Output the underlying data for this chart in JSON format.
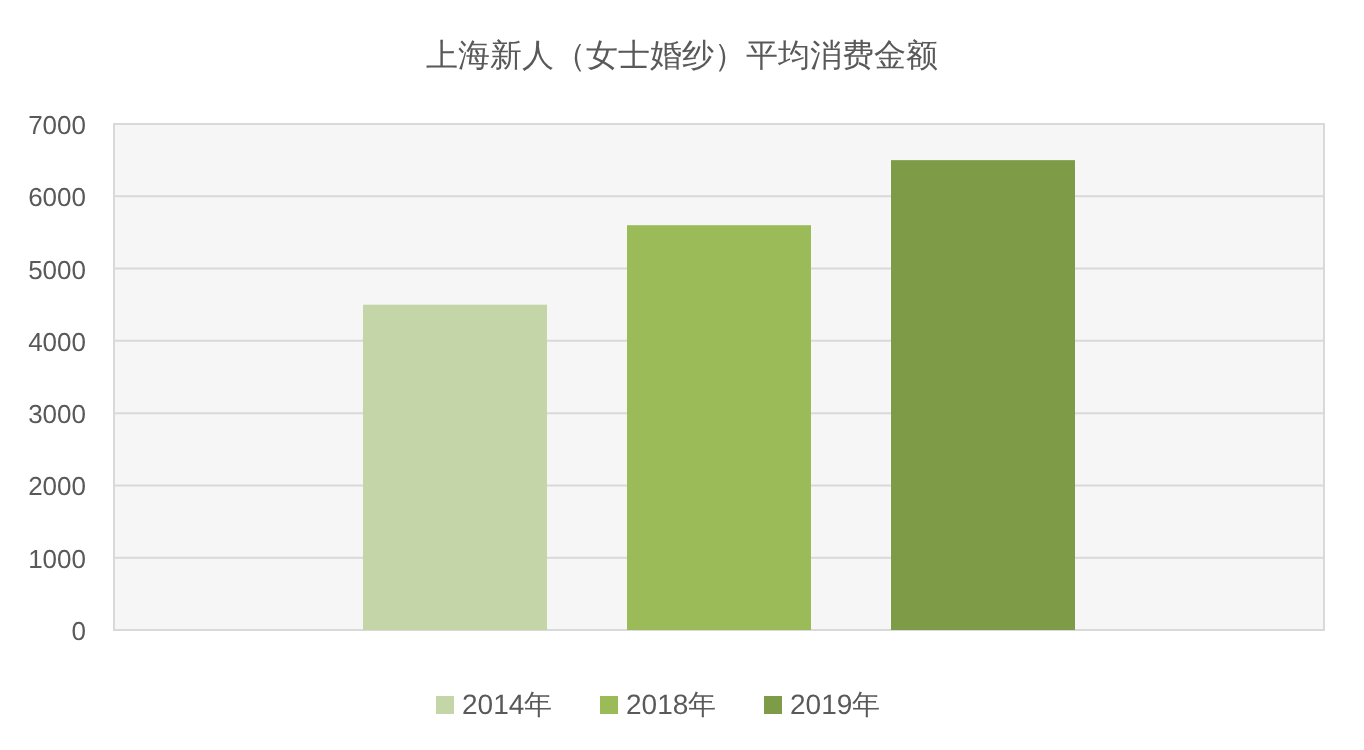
{
  "chart_data": {
    "type": "bar",
    "title": "上海新人（女士婚纱）平均消费金额",
    "categories": [
      null
    ],
    "series": [
      {
        "name": "2014年",
        "color": "#c4d6a8",
        "values": [
          4500
        ]
      },
      {
        "name": "2018年",
        "color": "#9bbb59",
        "values": [
          5600
        ]
      },
      {
        "name": "2019年",
        "color": "#7e9b48",
        "values": [
          6500
        ]
      }
    ],
    "ylim": [
      0,
      7000
    ],
    "yticks": [
      0,
      1000,
      2000,
      3000,
      4000,
      5000,
      6000,
      7000
    ],
    "grid": "y",
    "legend": "bottom"
  }
}
